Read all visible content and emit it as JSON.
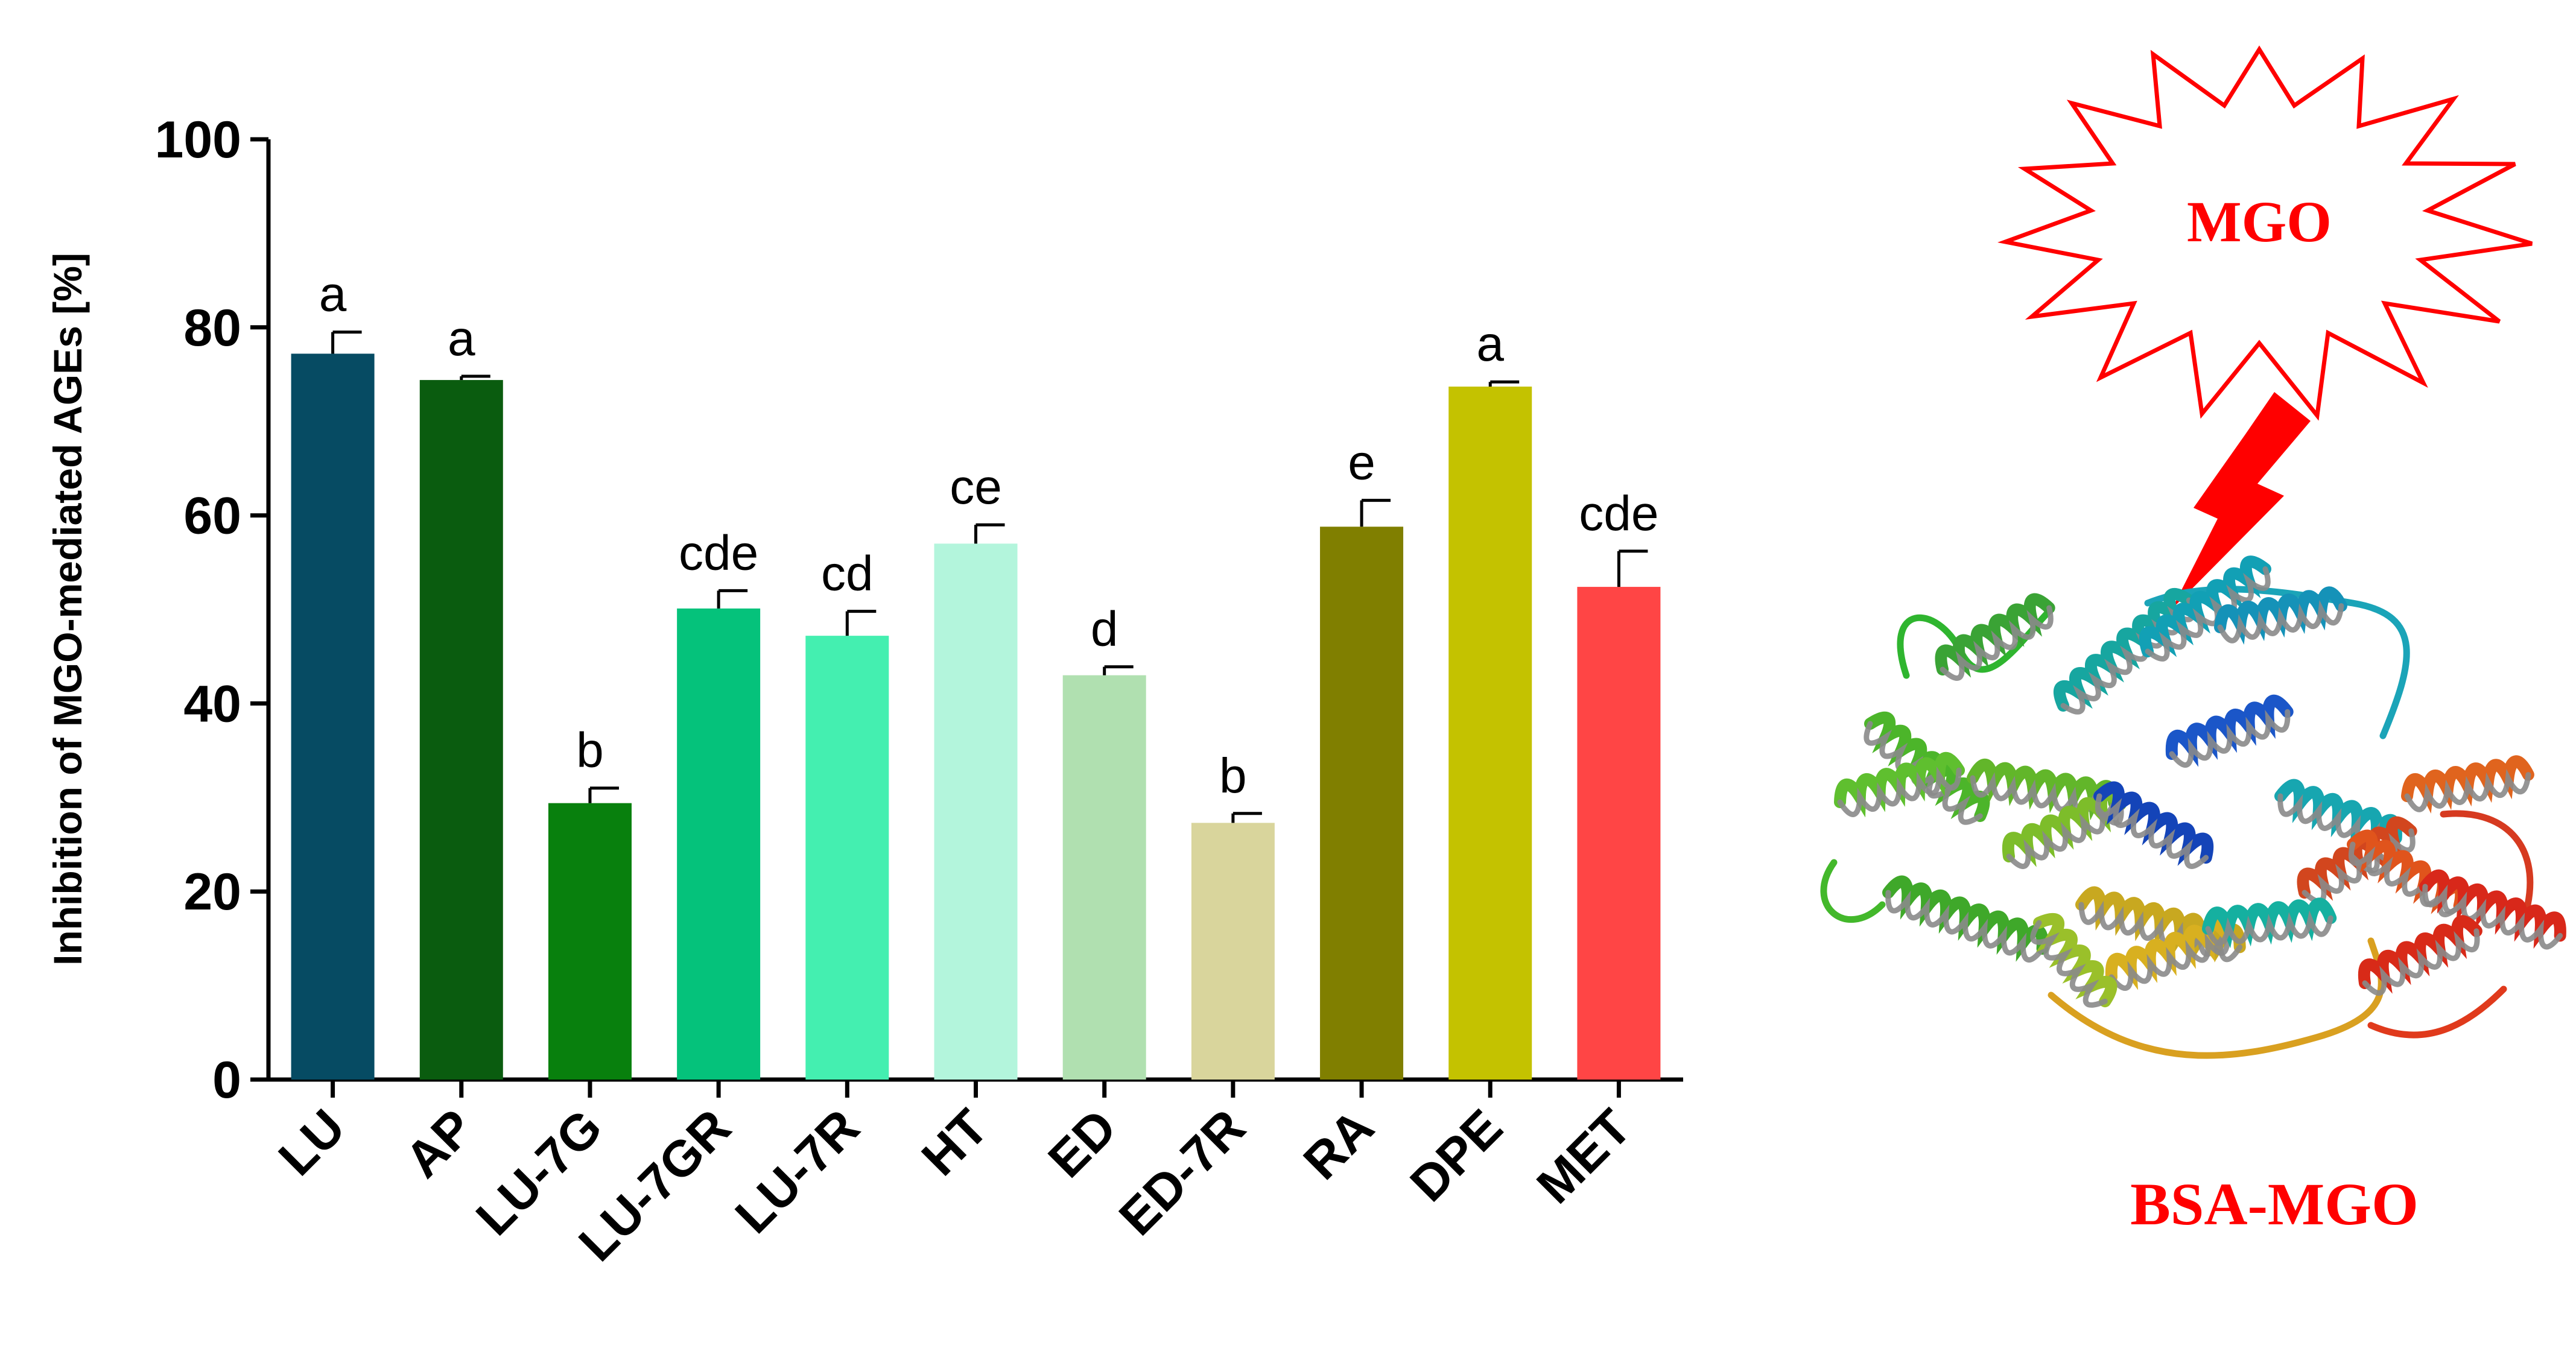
{
  "chart_data": {
    "type": "bar",
    "ylabel": "Inhibition of MGO-mediated AGEs [%]",
    "ylim": [
      0,
      100
    ],
    "yticks": [
      0,
      20,
      40,
      60,
      80,
      100
    ],
    "categories": [
      "LU",
      "AP",
      "LU-7G",
      "LU-7GR",
      "LU-7R",
      "HT",
      "ED",
      "ED-7R",
      "RA",
      "DPE",
      "MET"
    ],
    "values": [
      77.2,
      74.4,
      29.4,
      50.1,
      47.2,
      57.0,
      43.0,
      27.3,
      58.8,
      73.7,
      52.4
    ],
    "errors": [
      2.3,
      0.4,
      1.6,
      1.9,
      2.6,
      2.0,
      0.9,
      1.0,
      2.8,
      0.5,
      3.8
    ],
    "significance": [
      "a",
      "a",
      "b",
      "cde",
      "cd",
      "ce",
      "d",
      "b",
      "e",
      "a",
      "cde"
    ],
    "colors": [
      "#064b63",
      "#0a5c0f",
      "#08800d",
      "#05c27b",
      "#44efb0",
      "#b3f5dc",
      "#b0e0b0",
      "#d9d59c",
      "#807f00",
      "#c4c200",
      "#ff4545"
    ]
  },
  "illustration": {
    "burst_label": "MGO",
    "protein_label": "BSA-MGO",
    "accent_color": "#ff0000"
  }
}
